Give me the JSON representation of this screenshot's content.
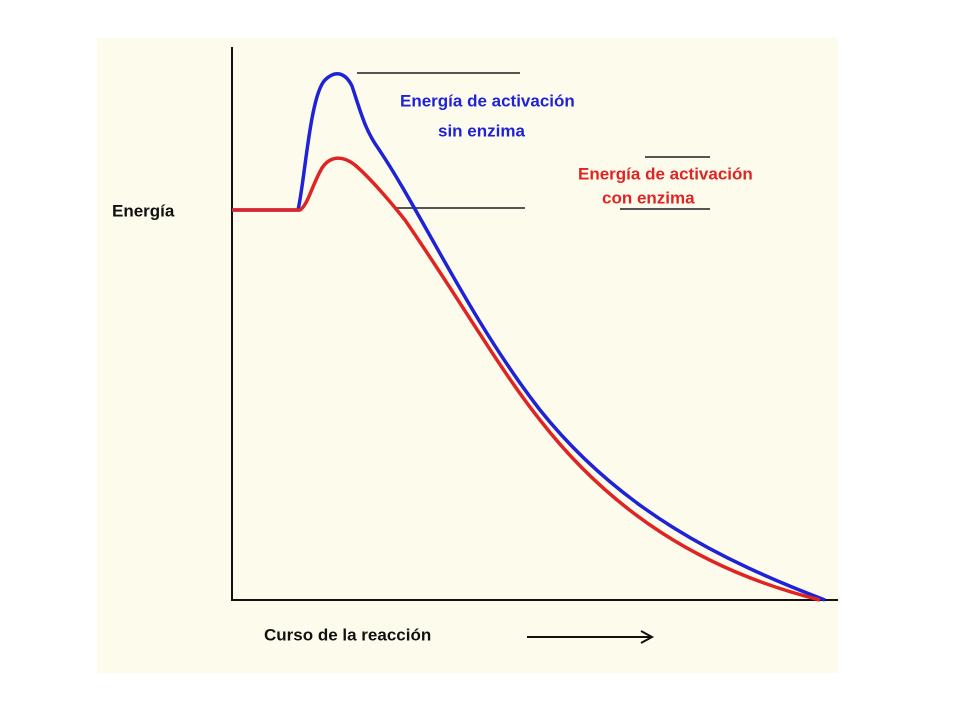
{
  "axis_labels": {
    "y": "Energía",
    "x": "Curso de la reacción"
  },
  "annotations": [
    {
      "lines": [
        "Energía de activación",
        "sin enzima"
      ],
      "color": "#1f22d6"
    },
    {
      "lines": [
        "Energía de activación",
        "con enzima"
      ],
      "color": "#e02424"
    }
  ]
}
